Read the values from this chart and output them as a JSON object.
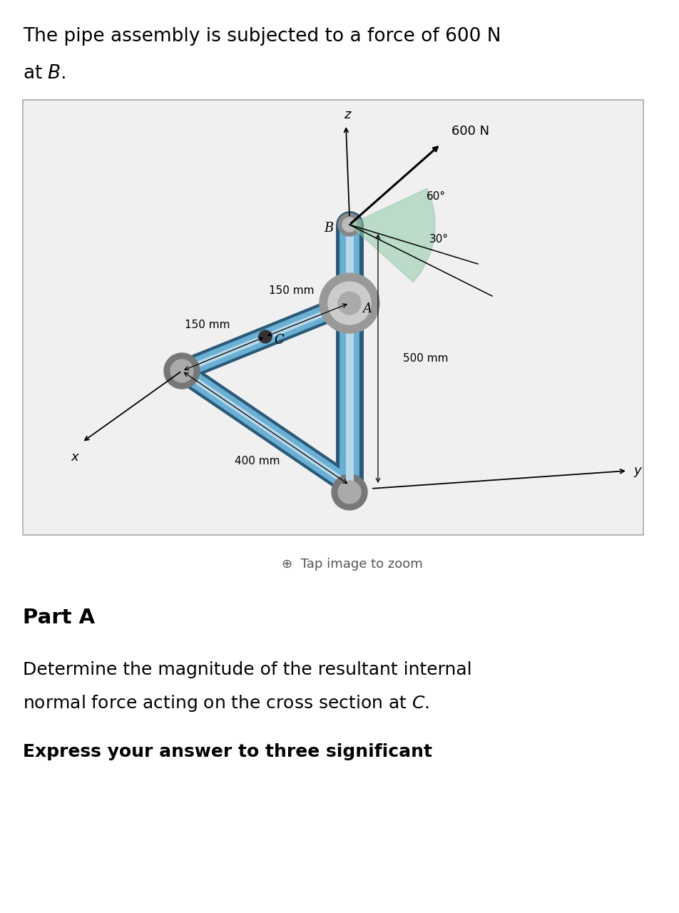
{
  "title_line1": "The pipe assembly is subjected to a force of 600 N",
  "title_line2": "at ",
  "title_B_italic": "B",
  "bg_color": "#ffffff",
  "box_facecolor": "#f0f0f0",
  "box_edgecolor": "#aaaaaa",
  "pipe_color_main": "#6aafd4",
  "pipe_color_dark": "#2a5a78",
  "pipe_color_light": "#b8d8ea",
  "joint_color": "#888888",
  "joint_light": "#bbbbbb",
  "dim_150_1": "150 mm",
  "dim_150_2": "150 mm",
  "dim_400": "400 mm",
  "dim_500": "500 mm",
  "force_label": "600 N",
  "angle_60": "60°",
  "angle_30": "30°",
  "label_B": "B",
  "label_C": "C",
  "label_A": "A",
  "label_x": "x",
  "label_y": "y",
  "label_z": "z",
  "tap_text": "Tap image to zoom",
  "part_a_title": "Part A",
  "part_a_line1": "Determine the magnitude of the resultant internal",
  "part_a_line2": "normal force acting on the cross section at ",
  "part_a_C_italic": "C",
  "part_a_line2_end": ".",
  "part_a_line3": "Express your answer to three significant"
}
